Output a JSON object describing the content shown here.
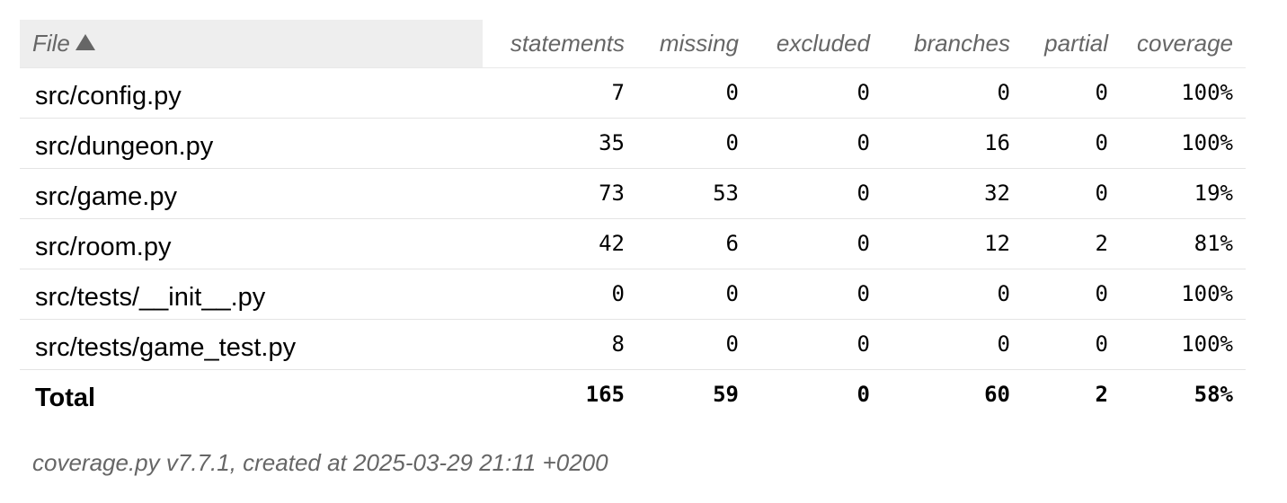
{
  "table": {
    "headers": {
      "file": "File",
      "statements": "statements",
      "missing": "missing",
      "excluded": "excluded",
      "branches": "branches",
      "partial": "partial",
      "coverage": "coverage"
    },
    "sort_icon": "sort-ascending-triangle-icon",
    "rows": [
      {
        "file": "src/config.py",
        "statements": "7",
        "missing": "0",
        "excluded": "0",
        "branches": "0",
        "partial": "0",
        "coverage": "100%"
      },
      {
        "file": "src/dungeon.py",
        "statements": "35",
        "missing": "0",
        "excluded": "0",
        "branches": "16",
        "partial": "0",
        "coverage": "100%"
      },
      {
        "file": "src/game.py",
        "statements": "73",
        "missing": "53",
        "excluded": "0",
        "branches": "32",
        "partial": "0",
        "coverage": "19%"
      },
      {
        "file": "src/room.py",
        "statements": "42",
        "missing": "6",
        "excluded": "0",
        "branches": "12",
        "partial": "2",
        "coverage": "81%"
      },
      {
        "file": "src/tests/__init__.py",
        "statements": "0",
        "missing": "0",
        "excluded": "0",
        "branches": "0",
        "partial": "0",
        "coverage": "100%"
      },
      {
        "file": "src/tests/game_test.py",
        "statements": "8",
        "missing": "0",
        "excluded": "0",
        "branches": "0",
        "partial": "0",
        "coverage": "100%"
      }
    ],
    "total": {
      "label": "Total",
      "statements": "165",
      "missing": "59",
      "excluded": "0",
      "branches": "60",
      "partial": "2",
      "coverage": "58%"
    }
  },
  "footer": {
    "note": "coverage.py v7.7.1, created at 2025-03-29 21:11 +0200"
  },
  "colors": {
    "header_text": "#666666",
    "header_file_bg": "#eeeeee",
    "row_border": "#e4e4e4"
  }
}
